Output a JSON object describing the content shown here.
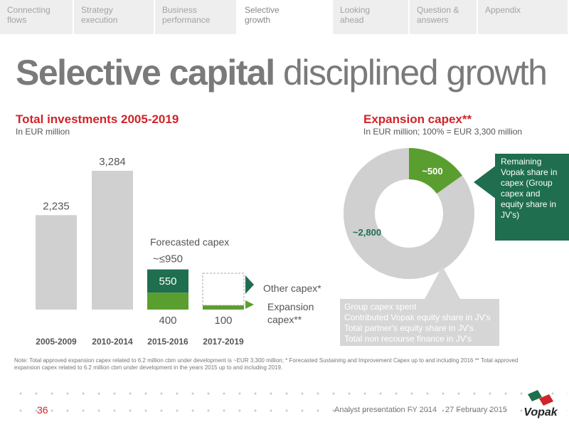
{
  "nav": {
    "tabs": [
      {
        "label": "Connecting\nflows",
        "active": false
      },
      {
        "label": "Strategy\nexecution",
        "active": false
      },
      {
        "label": "Business\nperformance",
        "active": false
      },
      {
        "label": "Selective\ngrowth",
        "active": true
      },
      {
        "label": "Looking\nahead",
        "active": false
      },
      {
        "label": "Question &\nanswers",
        "active": false
      },
      {
        "label": "Appendix",
        "active": false
      }
    ]
  },
  "title": {
    "bold": "Selective capital",
    "rest": "disciplined growth"
  },
  "left": {
    "title": "Total investments 2005-2019",
    "subtitle": "In EUR million"
  },
  "right": {
    "title": "Expansion capex**",
    "subtitle": "In EUR million; 100% = EUR 3,300 million"
  },
  "colors": {
    "accent_red": "#d0242a",
    "dark_green": "#1e6e4f",
    "green": "#5a9e2f",
    "grey": "#d0d0d0"
  },
  "chart_data": [
    {
      "type": "bar",
      "categories": [
        "2005-2009",
        "2010-2014",
        "2015-2016",
        "2017-2019"
      ],
      "series": [
        {
          "name": "",
          "values": [
            2235,
            3284,
            null,
            null
          ]
        },
        {
          "name": "Expansion capex**",
          "values": [
            null,
            null,
            400,
            100
          ]
        },
        {
          "name": "Other capex*",
          "values": [
            null,
            null,
            550,
            null
          ]
        }
      ],
      "bar_labels": [
        "2,235",
        "3,284",
        "400",
        "100"
      ],
      "stack_top_label": "~≤950",
      "other_label": "550",
      "forecast_label": "Forecasted capex",
      "legend": {
        "other": "Other capex*",
        "expansion": "Expansion\ncapex**"
      }
    },
    {
      "type": "pie",
      "slices": [
        {
          "label": "~500",
          "value": 500,
          "color": "#5a9e2f"
        },
        {
          "label": "~2,800",
          "value": 2800,
          "color": "#d0d0d0"
        }
      ]
    }
  ],
  "callouts": {
    "remaining": "Remaining Vopak share in capex (Group capex and equity share in JV's)",
    "group_lines": [
      "Group capex spent",
      "Contributed Vopak equity share in JV's",
      "Total partner's equity share in JV's",
      "Total non recourse finance in JV's"
    ]
  },
  "note": "Note: Total approved expansion capex related to 6.2 million cbm under development is ~EUR 3,300 million; * Forecasted Sustaining and Improvement Capex up to and including 2016 ** Total approved expansion capex related to 6.2 million cbm under development in the years 2015 up to and including 2019.",
  "footer": {
    "page": "36",
    "presentation": "Analyst presentation FY 2014",
    "date": "27 February 2015",
    "logo": "Vopak"
  }
}
